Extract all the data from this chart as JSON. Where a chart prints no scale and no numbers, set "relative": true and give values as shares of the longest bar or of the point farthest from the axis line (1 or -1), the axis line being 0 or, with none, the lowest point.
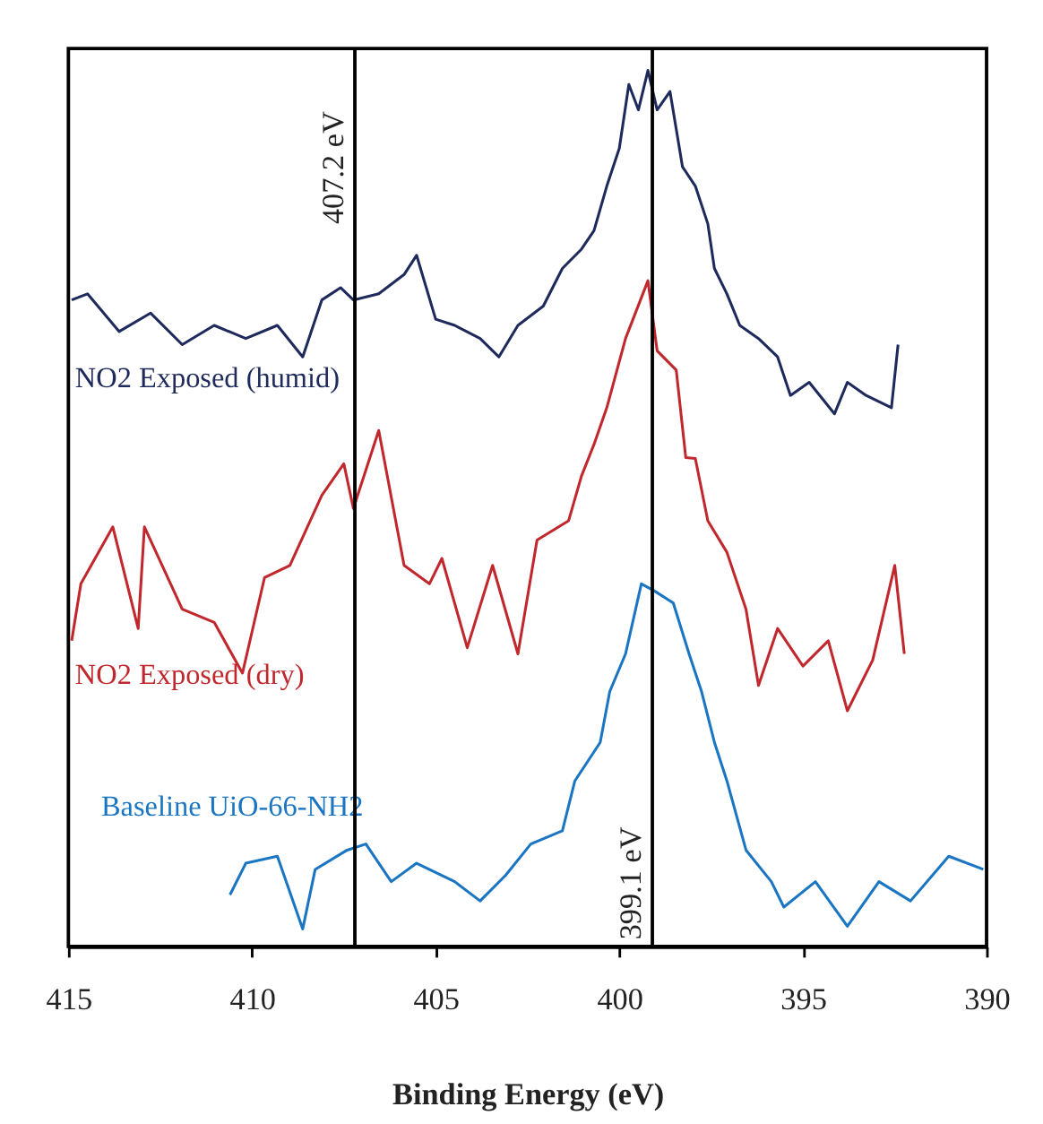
{
  "chart_data": {
    "type": "line",
    "relative": true,
    "xlabel": "Binding Energy (eV)",
    "xlim": [
      415,
      390
    ],
    "xticks": [
      415,
      410,
      405,
      400,
      395,
      390
    ],
    "grid": false,
    "legend": false,
    "marker": "none",
    "line_style": "solid",
    "ref_lines": [
      {
        "axis": "x",
        "value": 407.2,
        "label": "407.2 eV",
        "color": "#000000"
      },
      {
        "axis": "x",
        "value": 399.1,
        "label": "399.1 eV",
        "color": "#000000"
      }
    ],
    "series": [
      {
        "name": "NO2  Exposed (humid)",
        "color": "#1f2a5c",
        "x": [
          414.91,
          414.48,
          413.62,
          412.76,
          411.9,
          411.03,
          410.17,
          409.31,
          408.62,
          408.1,
          407.59,
          407.24,
          406.55,
          405.86,
          405.52,
          405.0,
          404.48,
          403.79,
          403.28,
          402.76,
          402.07,
          401.55,
          401.03,
          400.69,
          400.34,
          400.0,
          399.74,
          399.48,
          399.22,
          398.97,
          398.62,
          398.28,
          397.93,
          397.59,
          397.41,
          397.07,
          396.72,
          396.21,
          395.69,
          395.34,
          394.83,
          394.14,
          393.79,
          393.28,
          392.59,
          392.41
        ],
        "values": [
          0.738,
          0.745,
          0.702,
          0.723,
          0.687,
          0.709,
          0.694,
          0.709,
          0.673,
          0.738,
          0.752,
          0.738,
          0.745,
          0.767,
          0.789,
          0.716,
          0.709,
          0.694,
          0.673,
          0.709,
          0.731,
          0.774,
          0.796,
          0.817,
          0.868,
          0.911,
          0.984,
          0.955,
          1.0,
          0.955,
          0.976,
          0.89,
          0.868,
          0.825,
          0.774,
          0.745,
          0.709,
          0.694,
          0.673,
          0.629,
          0.644,
          0.608,
          0.644,
          0.629,
          0.615,
          0.687
        ]
      },
      {
        "name": "NO2  Exposed (dry)",
        "color": "#c0282d",
        "x": [
          414.91,
          414.66,
          413.79,
          413.1,
          412.93,
          411.9,
          411.03,
          410.26,
          409.66,
          408.97,
          408.1,
          407.5,
          407.24,
          406.55,
          405.86,
          405.17,
          404.83,
          404.14,
          403.45,
          402.76,
          402.24,
          401.38,
          401.03,
          400.69,
          400.34,
          399.83,
          399.22,
          398.97,
          398.45,
          398.19,
          397.93,
          397.59,
          397.07,
          396.55,
          396.21,
          395.69,
          395.0,
          394.31,
          393.79,
          393.1,
          392.5,
          392.24
        ],
        "values": [
          0.349,
          0.414,
          0.479,
          0.363,
          0.479,
          0.385,
          0.37,
          0.312,
          0.421,
          0.435,
          0.515,
          0.551,
          0.5,
          0.589,
          0.435,
          0.414,
          0.443,
          0.341,
          0.435,
          0.334,
          0.464,
          0.486,
          0.537,
          0.573,
          0.615,
          0.694,
          0.76,
          0.68,
          0.658,
          0.558,
          0.557,
          0.486,
          0.45,
          0.385,
          0.298,
          0.363,
          0.32,
          0.349,
          0.269,
          0.327,
          0.435,
          0.334
        ]
      },
      {
        "name": "Baseline UiO-66-NH2",
        "color": "#1a75c2",
        "x": [
          410.6,
          410.17,
          409.31,
          408.62,
          408.28,
          407.41,
          406.9,
          406.21,
          405.52,
          404.48,
          403.79,
          403.1,
          402.41,
          401.55,
          401.21,
          400.52,
          400.26,
          399.83,
          399.4,
          399.05,
          398.53,
          398.1,
          397.76,
          397.41,
          397.07,
          396.55,
          395.86,
          395.52,
          394.66,
          393.79,
          392.93,
          392.07,
          391.03,
          390.09
        ],
        "values": [
          0.059,
          0.095,
          0.103,
          0.02,
          0.088,
          0.11,
          0.117,
          0.074,
          0.095,
          0.074,
          0.052,
          0.081,
          0.117,
          0.132,
          0.189,
          0.233,
          0.291,
          0.334,
          0.414,
          0.406,
          0.392,
          0.334,
          0.291,
          0.233,
          0.189,
          0.11,
          0.074,
          0.045,
          0.074,
          0.023,
          0.074,
          0.052,
          0.103,
          0.088
        ]
      }
    ]
  }
}
